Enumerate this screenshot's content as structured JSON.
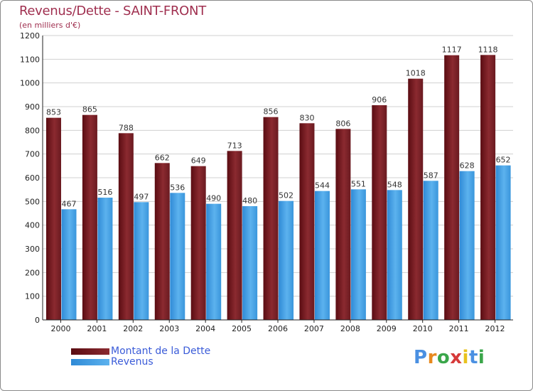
{
  "chart_data": {
    "type": "bar",
    "title": "Revenus/Dette - SAINT-FRONT",
    "subtitle": "(en milliers d'€)",
    "xlabel": "",
    "ylabel": "",
    "ylim": [
      0,
      1200
    ],
    "yticks": [
      0,
      100,
      200,
      300,
      400,
      500,
      600,
      700,
      800,
      900,
      1000,
      1100,
      1200
    ],
    "grid": true,
    "legend_position": "bottom-left",
    "categories": [
      "2000",
      "2001",
      "2002",
      "2003",
      "2004",
      "2005",
      "2006",
      "2007",
      "2008",
      "2009",
      "2010",
      "2011",
      "2012"
    ],
    "series": [
      {
        "name": "Montant de la Dette",
        "color": "#7a1a22",
        "values": [
          853,
          865,
          788,
          662,
          649,
          713,
          856,
          830,
          806,
          906,
          1018,
          1117,
          1118
        ]
      },
      {
        "name": "Revenus",
        "color": "#4aa3e6",
        "values": [
          467,
          516,
          497,
          536,
          490,
          480,
          502,
          544,
          551,
          548,
          587,
          628,
          652
        ]
      }
    ]
  },
  "colors": {
    "title": "#a03050",
    "grid": "#d0d0d0",
    "axis": "#222222",
    "legend_text": "#3a5bd8"
  },
  "logo": {
    "letters": [
      "P",
      "r",
      "o",
      "x",
      "i",
      "t",
      "i"
    ],
    "colors": [
      "#4a90e2",
      "#e8891e",
      "#3aa64a",
      "#d63a3a",
      "#e8c21e",
      "#4a90e2",
      "#3aa64a"
    ]
  }
}
